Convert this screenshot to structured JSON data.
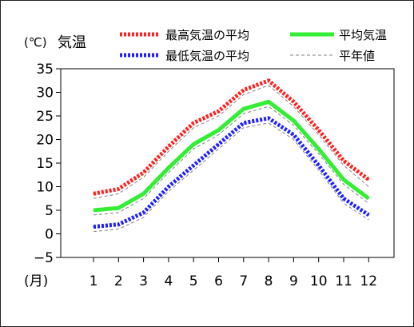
{
  "chart_data": {
    "type": "line",
    "ylabel_unit": "(℃)",
    "ylabel": "気温",
    "xlabel": "(月)",
    "categories": [
      "1",
      "2",
      "3",
      "4",
      "5",
      "6",
      "7",
      "8",
      "9",
      "10",
      "11",
      "12"
    ],
    "ylim": [
      -5,
      35
    ],
    "yticks": [
      "35",
      "30",
      "25",
      "20",
      "15",
      "10",
      "5",
      "0",
      "−5"
    ],
    "ytick_values": [
      35,
      30,
      25,
      20,
      15,
      10,
      5,
      0,
      -5
    ],
    "grid": false,
    "legend_position": "top",
    "series": [
      {
        "name": "最高気温の平均",
        "color": "#ff2020",
        "style": "dotted",
        "values": [
          8.5,
          9.5,
          13.0,
          18.5,
          23.5,
          26.0,
          30.5,
          32.5,
          28.0,
          22.0,
          15.5,
          11.5
        ]
      },
      {
        "name": "平均気温",
        "color": "#33ee33",
        "style": "solid",
        "values": [
          5.0,
          5.5,
          8.5,
          14.0,
          19.0,
          22.0,
          26.5,
          28.0,
          24.0,
          18.0,
          11.5,
          7.5
        ]
      },
      {
        "name": "最低気温の平均",
        "color": "#2020ff",
        "style": "dotted",
        "values": [
          1.5,
          2.0,
          4.5,
          10.0,
          14.5,
          19.0,
          23.5,
          24.5,
          21.0,
          14.5,
          7.5,
          4.0
        ]
      }
    ],
    "normals": {
      "name": "平年値",
      "color": "#808080",
      "style": "dashed",
      "max": [
        7.5,
        8.5,
        12.0,
        17.5,
        22.5,
        25.0,
        29.5,
        31.5,
        27.0,
        21.0,
        14.5,
        10.0
      ],
      "mean": [
        4.0,
        4.5,
        7.5,
        13.0,
        18.0,
        21.0,
        25.5,
        27.0,
        23.0,
        17.0,
        10.5,
        6.5
      ],
      "min": [
        0.5,
        1.0,
        3.5,
        9.0,
        13.5,
        18.0,
        22.5,
        23.5,
        20.0,
        13.5,
        6.5,
        3.0
      ]
    }
  }
}
